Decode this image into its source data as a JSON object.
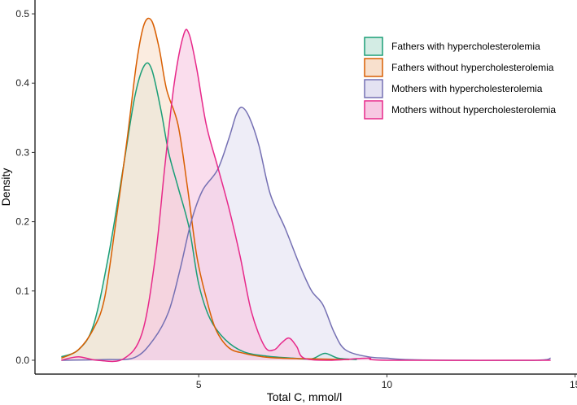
{
  "chart_data": {
    "type": "area",
    "title": "",
    "xlabel": "Total C, mmol/l",
    "ylabel": "Density",
    "xlim": [
      0.65,
      15.05
    ],
    "ylim": [
      -0.02,
      0.52
    ],
    "xticks": [
      5,
      10,
      15
    ],
    "xtick_labels": [
      "5",
      "10",
      "15"
    ],
    "yticks": [
      0.0,
      0.1,
      0.2,
      0.3,
      0.4,
      0.5
    ],
    "ytick_labels": [
      "0.0",
      "0.1",
      "0.2",
      "0.3",
      "0.4",
      "0.5"
    ],
    "grid": false,
    "legend_position": "top-right",
    "series": [
      {
        "name": "Fathers with hypercholesterolemia",
        "color": "#1b9e77",
        "fill": "#d3ece4",
        "points": [
          [
            1.35,
            0.005
          ],
          [
            1.8,
            0.015
          ],
          [
            2.2,
            0.05
          ],
          [
            2.6,
            0.15
          ],
          [
            3.0,
            0.28
          ],
          [
            3.3,
            0.38
          ],
          [
            3.55,
            0.425
          ],
          [
            3.75,
            0.42
          ],
          [
            4.0,
            0.36
          ],
          [
            4.2,
            0.3
          ],
          [
            4.45,
            0.25
          ],
          [
            4.75,
            0.19
          ],
          [
            5.0,
            0.11
          ],
          [
            5.3,
            0.06
          ],
          [
            5.7,
            0.03
          ],
          [
            6.2,
            0.012
          ],
          [
            6.8,
            0.006
          ],
          [
            7.5,
            0.003
          ],
          [
            8.0,
            0.002
          ],
          [
            8.35,
            0.01
          ],
          [
            8.7,
            0.003
          ],
          [
            9.2,
            0.001
          ]
        ]
      },
      {
        "name": "Fathers without hypercholesterolemia",
        "color": "#d95f02",
        "fill": "#f8e0cd",
        "points": [
          [
            1.35,
            0.003
          ],
          [
            1.8,
            0.015
          ],
          [
            2.2,
            0.045
          ],
          [
            2.5,
            0.09
          ],
          [
            2.8,
            0.2
          ],
          [
            3.1,
            0.32
          ],
          [
            3.35,
            0.43
          ],
          [
            3.55,
            0.485
          ],
          [
            3.75,
            0.49
          ],
          [
            3.95,
            0.45
          ],
          [
            4.15,
            0.39
          ],
          [
            4.45,
            0.34
          ],
          [
            4.7,
            0.25
          ],
          [
            4.95,
            0.15
          ],
          [
            5.2,
            0.09
          ],
          [
            5.45,
            0.045
          ],
          [
            5.8,
            0.018
          ],
          [
            6.2,
            0.01
          ],
          [
            6.7,
            0.005
          ],
          [
            7.2,
            0.003
          ],
          [
            8.0,
            0.002
          ],
          [
            9.0,
            0.001
          ]
        ]
      },
      {
        "name": "Mothers with hypercholesterolemia",
        "color": "#7570b3",
        "fill": "#e4e2f2",
        "points": [
          [
            1.35,
            0.0
          ],
          [
            2.5,
            0.001
          ],
          [
            3.3,
            0.004
          ],
          [
            3.8,
            0.03
          ],
          [
            4.2,
            0.07
          ],
          [
            4.5,
            0.13
          ],
          [
            4.8,
            0.2
          ],
          [
            5.1,
            0.245
          ],
          [
            5.5,
            0.275
          ],
          [
            5.8,
            0.32
          ],
          [
            6.0,
            0.355
          ],
          [
            6.15,
            0.365
          ],
          [
            6.35,
            0.35
          ],
          [
            6.6,
            0.31
          ],
          [
            6.9,
            0.24
          ],
          [
            7.3,
            0.19
          ],
          [
            7.7,
            0.135
          ],
          [
            8.0,
            0.1
          ],
          [
            8.3,
            0.08
          ],
          [
            8.6,
            0.04
          ],
          [
            8.9,
            0.015
          ],
          [
            9.5,
            0.005
          ],
          [
            10.0,
            0.003
          ],
          [
            10.5,
            0.001
          ],
          [
            12.0,
            0.0
          ],
          [
            14.0,
            0.0
          ],
          [
            14.35,
            0.003
          ]
        ]
      },
      {
        "name": "Mothers without hypercholesterolemia",
        "color": "#e7298a",
        "fill": "#f7c8e2",
        "points": [
          [
            1.35,
            0.0
          ],
          [
            1.8,
            0.005
          ],
          [
            2.3,
            0.0
          ],
          [
            3.0,
            0.002
          ],
          [
            3.5,
            0.04
          ],
          [
            3.85,
            0.15
          ],
          [
            4.1,
            0.28
          ],
          [
            4.35,
            0.4
          ],
          [
            4.6,
            0.47
          ],
          [
            4.75,
            0.47
          ],
          [
            4.95,
            0.42
          ],
          [
            5.2,
            0.34
          ],
          [
            5.5,
            0.28
          ],
          [
            5.8,
            0.22
          ],
          [
            6.1,
            0.15
          ],
          [
            6.4,
            0.07
          ],
          [
            6.75,
            0.02
          ],
          [
            7.0,
            0.015
          ],
          [
            7.2,
            0.025
          ],
          [
            7.4,
            0.032
          ],
          [
            7.6,
            0.02
          ],
          [
            7.8,
            0.003
          ],
          [
            8.5,
            0.0
          ],
          [
            9.5,
            0.003
          ],
          [
            10.0,
            0.0
          ],
          [
            14.35,
            0.0
          ]
        ]
      }
    ]
  }
}
